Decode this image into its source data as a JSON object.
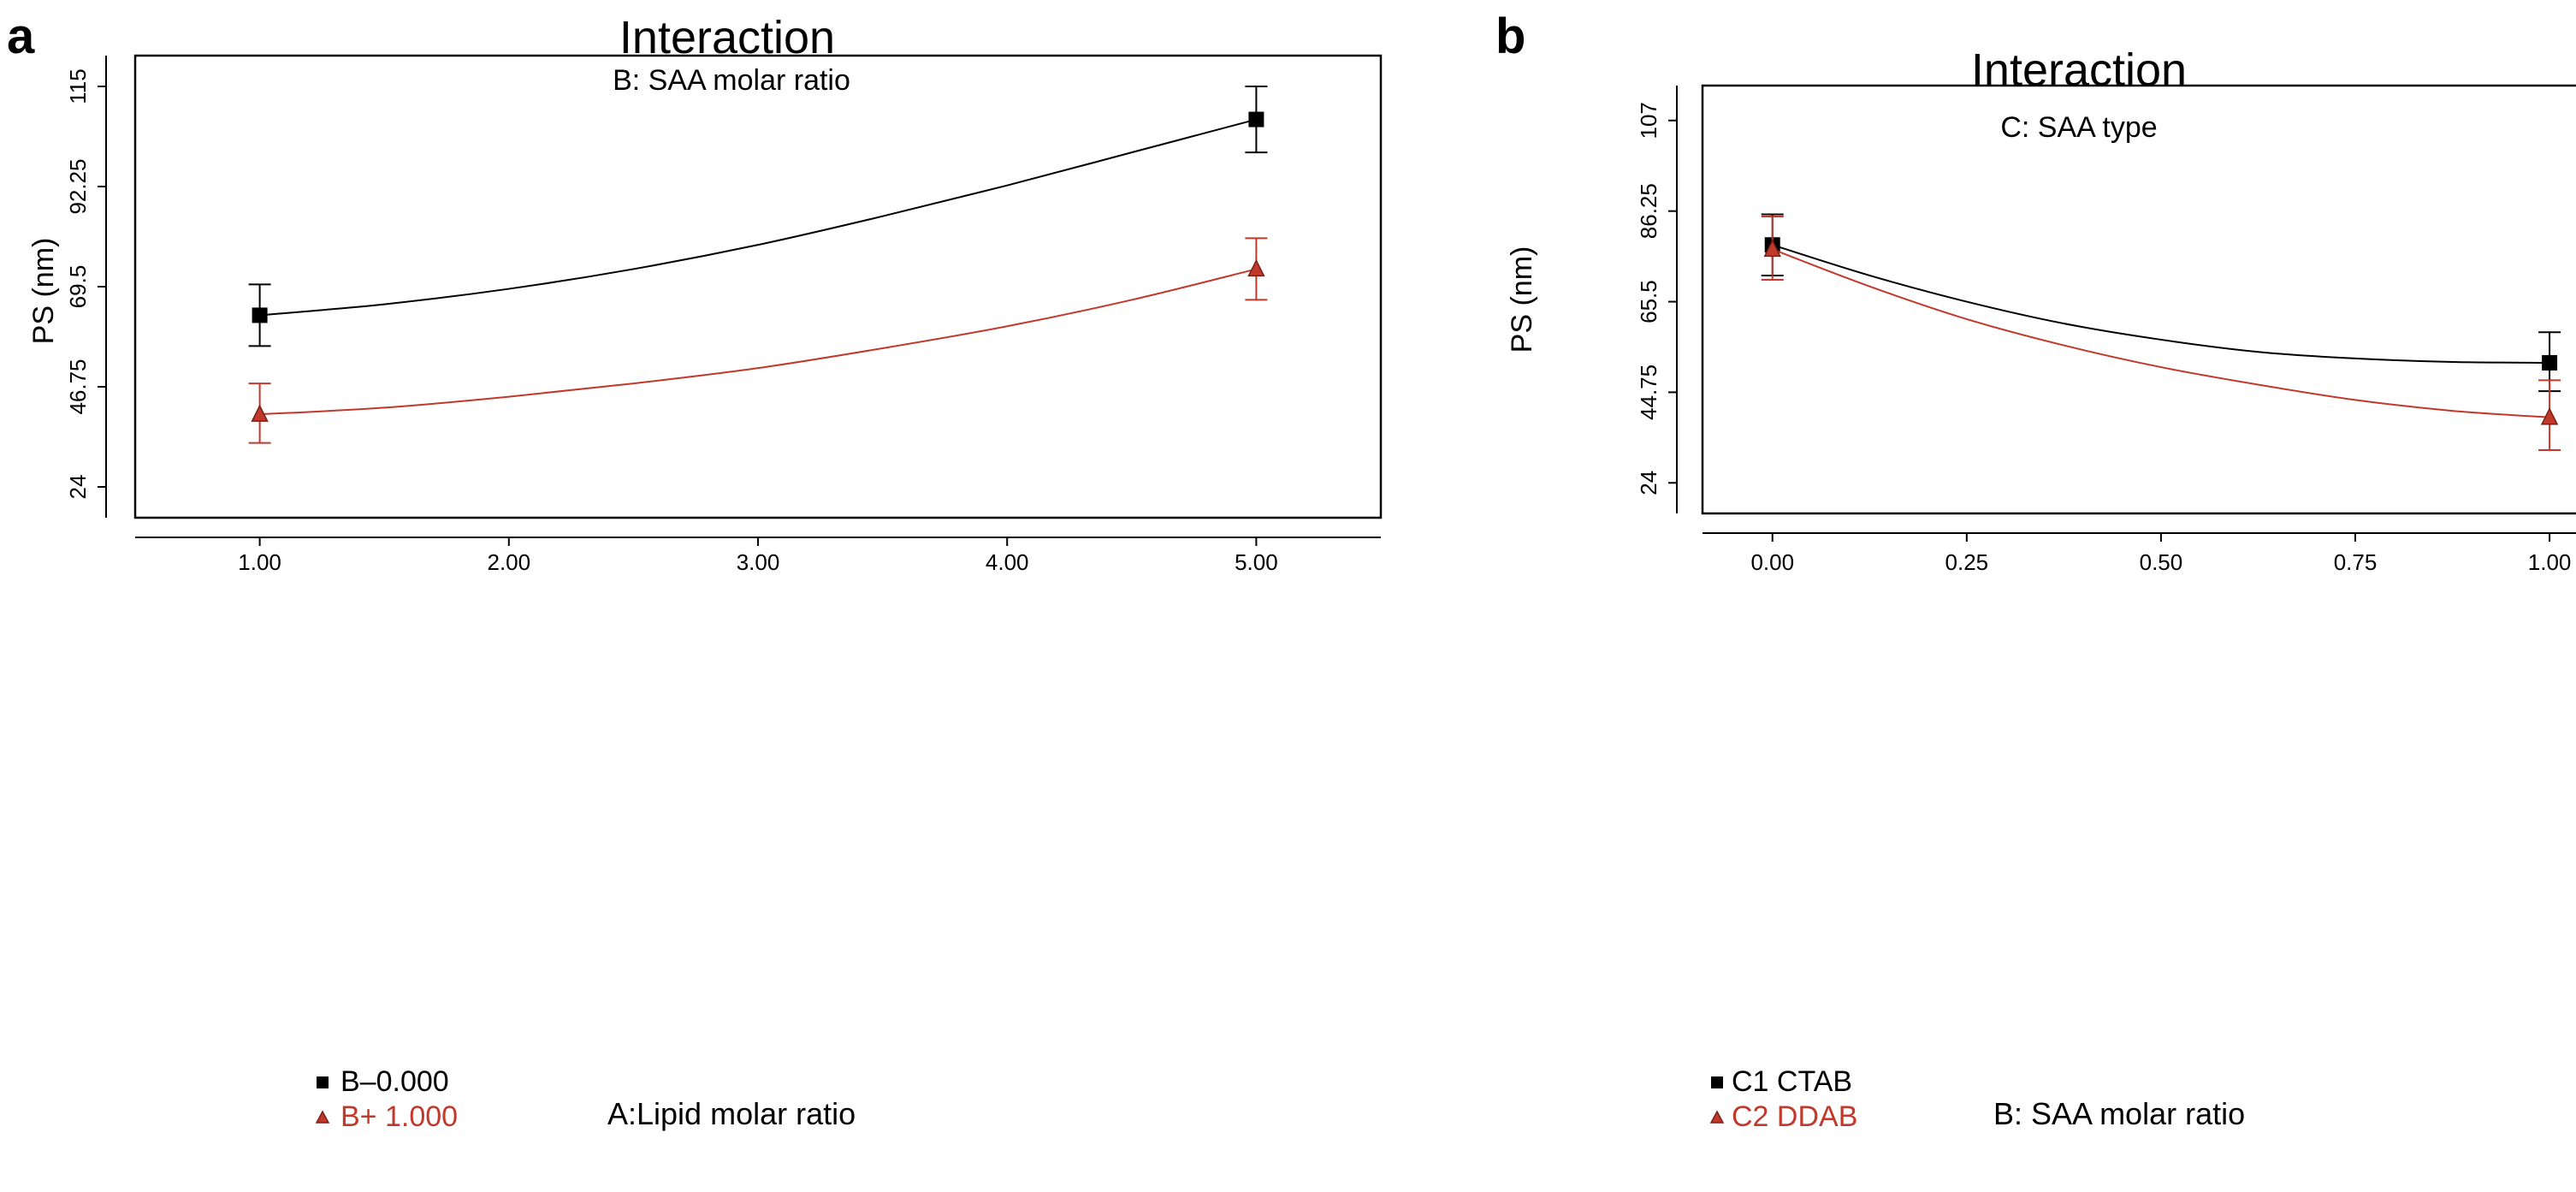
{
  "chart_data": [
    {
      "type": "line",
      "panel_label": "a",
      "title": "Interaction",
      "subtitle": "B: SAA molar ratio",
      "xlabel": "A:Lipid molar ratio",
      "ylabel": "PS (nm)",
      "xlim": [
        0.5,
        5.5
      ],
      "ylim": [
        17,
        122
      ],
      "x_ticks": [
        1,
        2,
        3,
        4,
        5
      ],
      "x_tick_labels": [
        "1.00",
        "2.00",
        "3.00",
        "4.00",
        "5.00"
      ],
      "y_ticks": [
        24,
        46.75,
        69.5,
        92.25,
        115
      ],
      "y_tick_labels": [
        "24",
        "46.75",
        "69.5",
        "92.25",
        "115"
      ],
      "grid": false,
      "legend_position": "bottom-left",
      "series": [
        {
          "name": "B–0.000",
          "color": "#000000",
          "marker": "square",
          "x": [
            1,
            5
          ],
          "values": [
            63,
            107.5
          ],
          "error_low": [
            56,
            100
          ],
          "error_high": [
            70,
            115
          ],
          "curve": [
            [
              1,
              63
            ],
            [
              1.5,
              65.5
            ],
            [
              2,
              69
            ],
            [
              2.5,
              73.5
            ],
            [
              3,
              79
            ],
            [
              3.5,
              85.5
            ],
            [
              4,
              92.5
            ],
            [
              4.5,
              100
            ],
            [
              5,
              107.5
            ]
          ]
        },
        {
          "name": "B+ 1.000",
          "color": "#c0392b",
          "marker": "triangle",
          "x": [
            1,
            5
          ],
          "values": [
            40.5,
            73.5
          ],
          "error_low": [
            34,
            66.5
          ],
          "error_high": [
            47.5,
            80.5
          ],
          "curve": [
            [
              1,
              40.5
            ],
            [
              1.5,
              42
            ],
            [
              2,
              44.5
            ],
            [
              2.5,
              47.5
            ],
            [
              3,
              51
            ],
            [
              3.5,
              55.5
            ],
            [
              4,
              60.5
            ],
            [
              4.5,
              66.5
            ],
            [
              5,
              73.5
            ]
          ]
        }
      ]
    },
    {
      "type": "line",
      "panel_label": "b",
      "title": "Interaction",
      "subtitle": "C: SAA type",
      "xlabel": "B: SAA molar ratio",
      "ylabel": "PS (nm)",
      "xlim": [
        -0.09,
        1.11
      ],
      "ylim": [
        17,
        115
      ],
      "x_ticks": [
        0,
        0.25,
        0.5,
        0.75,
        1
      ],
      "x_tick_labels": [
        "0.00",
        "0.25",
        "0.50",
        "0.75",
        "1.00"
      ],
      "y_ticks": [
        24,
        44.75,
        65.5,
        86.25,
        107
      ],
      "y_tick_labels": [
        "24",
        "44.75",
        "65.5",
        "86.25",
        "107"
      ],
      "grid": false,
      "legend_position": "bottom-left",
      "series": [
        {
          "name": "C1 CTAB",
          "color": "#000000",
          "marker": "square",
          "x": [
            0,
            1
          ],
          "values": [
            78.5,
            51.5
          ],
          "error_low": [
            71.5,
            45
          ],
          "error_high": [
            85.5,
            58.5
          ],
          "curve": [
            [
              0,
              78.5
            ],
            [
              0.125,
              71.5
            ],
            [
              0.25,
              65.5
            ],
            [
              0.375,
              60.5
            ],
            [
              0.5,
              56.8
            ],
            [
              0.625,
              54
            ],
            [
              0.75,
              52.5
            ],
            [
              0.875,
              51.7
            ],
            [
              1,
              51.5
            ]
          ]
        },
        {
          "name": "C2 DDAB",
          "color": "#c0392b",
          "marker": "triangle",
          "x": [
            0,
            1
          ],
          "values": [
            77.5,
            39
          ],
          "error_low": [
            70.5,
            31.5
          ],
          "error_high": [
            85,
            47.5
          ],
          "curve": [
            [
              0,
              77.5
            ],
            [
              0.125,
              69
            ],
            [
              0.25,
              61.5
            ],
            [
              0.375,
              55.5
            ],
            [
              0.5,
              50.5
            ],
            [
              0.625,
              46.5
            ],
            [
              0.75,
              43
            ],
            [
              0.875,
              40.5
            ],
            [
              1,
              39
            ]
          ]
        }
      ]
    }
  ]
}
